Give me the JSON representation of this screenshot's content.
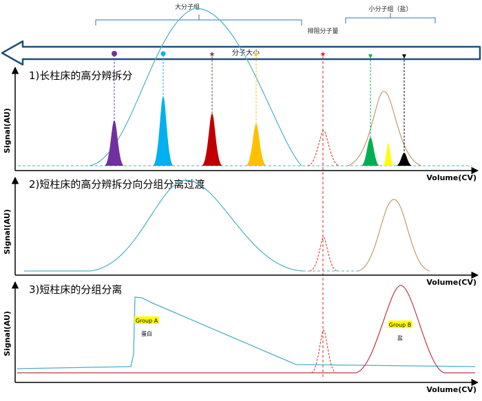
{
  "labels": {
    "large_group": "大分子组",
    "small_group": "小分子组（盐）",
    "exclusion_limit": "排阻分子量",
    "molecule_size": "分子大小",
    "ylabel": "Signal(AU)",
    "xlabel": "Volume(CV)"
  },
  "panels": [
    {
      "title": "1)长柱床的高分辨拆分"
    },
    {
      "title": "2)短柱床的高分辨拆分向分组分离过渡"
    },
    {
      "title": "3)短柱床的分组分离"
    }
  ],
  "group_a": {
    "label": "Group A",
    "sublabel": "蛋白"
  },
  "group_b": {
    "label": "Group B",
    "sublabel": "盐"
  },
  "colors": {
    "purple": "#7030a0",
    "blue": "#00b0f0",
    "darkred": "#c00000",
    "orange": "#ffc000",
    "red": "#e0201a",
    "green": "#00b050",
    "yellow": "#ffff00",
    "black": "#000000",
    "teal": "#4aafc6",
    "tan": "#c49a6c",
    "brownred": "#b5393f",
    "highlight": "#ffff00"
  }
}
